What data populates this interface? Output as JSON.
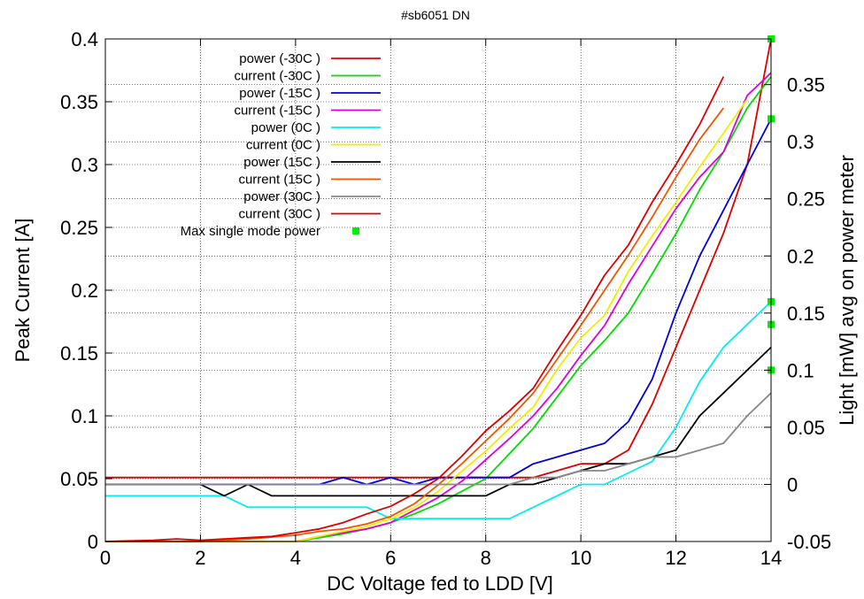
{
  "chart_data": {
    "type": "line",
    "title": "#sb6051 DN",
    "xlabel": "DC Voltage fed to LDD [V]",
    "ylabel": "Peak Current [A]",
    "y2label": "Light [mW] avg on power meter",
    "xlim": [
      0,
      14
    ],
    "ylim": [
      0,
      0.4
    ],
    "y2lim": [
      -0.05,
      0.39
    ],
    "x_ticks": [
      "0",
      "2",
      "4",
      "6",
      "8",
      "10",
      "12",
      "14"
    ],
    "x_tick_values": [
      0,
      2,
      4,
      6,
      8,
      10,
      12,
      14
    ],
    "y_ticks": [
      "0",
      "0.05",
      "0.1",
      "0.15",
      "0.2",
      "0.25",
      "0.3",
      "0.35",
      "0.4"
    ],
    "y_tick_values": [
      0,
      0.05,
      0.1,
      0.15,
      0.2,
      0.25,
      0.3,
      0.35,
      0.4
    ],
    "y2_ticks": [
      "-0.05",
      "0",
      "0.05",
      "0.1",
      "0.15",
      "0.2",
      "0.25",
      "0.3",
      "0.35"
    ],
    "y2_tick_values": [
      -0.05,
      0,
      0.05,
      0.1,
      0.15,
      0.2,
      0.25,
      0.3,
      0.35
    ],
    "grid": true,
    "legend_position": "top-left",
    "series": [
      {
        "name": "power (-30C )",
        "axis": "y2",
        "color": "#dd0000",
        "x": [
          0,
          7,
          8,
          8.5,
          9,
          9.5,
          10,
          10.5,
          11,
          11.5,
          12,
          12.5,
          13,
          13.5,
          14
        ],
        "y": [
          0.006,
          0.006,
          0.006,
          0.006,
          0.006,
          0.012,
          0.018,
          0.018,
          0.03,
          0.07,
          0.12,
          0.17,
          0.22,
          0.28,
          0.39
        ]
      },
      {
        "name": "current (-30C )",
        "axis": "y",
        "color": "#00dd00",
        "x": [
          0,
          1,
          2,
          3,
          4,
          4.5,
          5,
          5.5,
          6,
          6.5,
          7,
          7.5,
          8,
          8.5,
          9,
          9.5,
          10,
          10.5,
          11,
          11.5,
          12,
          12.5,
          13,
          13.5,
          14
        ],
        "y": [
          0,
          0,
          0,
          0,
          0,
          0.003,
          0.006,
          0.01,
          0.015,
          0.022,
          0.03,
          0.04,
          0.05,
          0.07,
          0.09,
          0.115,
          0.14,
          0.16,
          0.182,
          0.213,
          0.245,
          0.28,
          0.31,
          0.345,
          0.37
        ]
      },
      {
        "name": "power (-15C )",
        "axis": "y2",
        "color": "#0000dd",
        "x": [
          0,
          4.5,
          5,
          5.5,
          6,
          6.5,
          7,
          7.5,
          8,
          8.5,
          9,
          9.5,
          10,
          10.5,
          11,
          11.5,
          12,
          12.5,
          13,
          13.5,
          14
        ],
        "y": [
          0,
          0,
          0.006,
          0,
          0.006,
          0,
          0.006,
          0.006,
          0.006,
          0.006,
          0.018,
          0.024,
          0.03,
          0.036,
          0.055,
          0.092,
          0.15,
          0.2,
          0.24,
          0.28,
          0.32
        ]
      },
      {
        "name": "current (-15C )",
        "axis": "y",
        "color": "#dd00dd",
        "x": [
          0,
          1,
          2,
          3,
          4,
          4.5,
          5,
          5.5,
          6,
          6.5,
          7,
          7.5,
          8,
          8.5,
          9,
          9.5,
          10,
          10.5,
          11,
          11.5,
          12,
          12.5,
          13,
          13.5,
          14
        ],
        "y": [
          0,
          0,
          0,
          0,
          0,
          0.004,
          0.007,
          0.01,
          0.015,
          0.025,
          0.035,
          0.048,
          0.065,
          0.082,
          0.1,
          0.122,
          0.148,
          0.172,
          0.205,
          0.235,
          0.265,
          0.29,
          0.31,
          0.355,
          0.373
        ]
      },
      {
        "name": "power (0C )",
        "axis": "y2",
        "color": "#00eeee",
        "x": [
          0,
          2.5,
          3,
          5.5,
          6,
          8.5,
          9,
          10,
          10.5,
          11,
          11.5,
          12,
          12.5,
          13,
          13.5,
          14
        ],
        "y": [
          -0.01,
          -0.01,
          -0.02,
          -0.02,
          -0.03,
          -0.03,
          -0.02,
          0,
          0,
          0.01,
          0.02,
          0.05,
          0.09,
          0.12,
          0.14,
          0.16
        ]
      },
      {
        "name": "current (0C )",
        "axis": "y",
        "color": "#eeee00",
        "x": [
          0,
          1,
          2,
          3,
          4,
          4.5,
          5,
          5.5,
          6,
          6.5,
          7,
          7.5,
          8,
          8.5,
          9,
          9.5,
          10,
          10.5,
          11,
          11.5,
          12,
          12.5,
          13,
          13.5
        ],
        "y": [
          0,
          0,
          0,
          0,
          0,
          0.004,
          0.008,
          0.012,
          0.018,
          0.027,
          0.04,
          0.056,
          0.072,
          0.09,
          0.107,
          0.137,
          0.162,
          0.18,
          0.215,
          0.243,
          0.27,
          0.298,
          0.325,
          0.352
        ]
      },
      {
        "name": "power (15C )",
        "axis": "y2",
        "color": "#000000",
        "x": [
          0,
          2,
          2.5,
          3,
          3.5,
          8,
          8.5,
          9,
          9.5,
          10,
          10.5,
          11,
          11.5,
          12,
          12.5,
          13,
          13.5,
          14
        ],
        "y": [
          0,
          0,
          -0.01,
          0,
          -0.01,
          -0.01,
          0,
          0,
          0.006,
          0.012,
          0.018,
          0.018,
          0.024,
          0.03,
          0.06,
          0.08,
          0.1,
          0.12
        ]
      },
      {
        "name": "current (15C )",
        "axis": "y",
        "color": "#ee5500",
        "x": [
          0,
          1,
          2,
          3,
          4,
          4.5,
          5,
          5.5,
          6,
          6.5,
          7,
          7.5,
          8,
          8.5,
          9,
          9.5,
          10,
          10.5,
          11,
          11.5,
          12,
          12.5,
          13
        ],
        "y": [
          0,
          0,
          0,
          0.002,
          0.005,
          0.008,
          0.01,
          0.014,
          0.02,
          0.03,
          0.045,
          0.062,
          0.08,
          0.098,
          0.118,
          0.145,
          0.172,
          0.2,
          0.228,
          0.258,
          0.29,
          0.32,
          0.345
        ]
      },
      {
        "name": "power (30C )",
        "axis": "y2",
        "color": "#888888",
        "x": [
          0,
          8.5,
          9,
          9.5,
          10,
          10.5,
          11,
          11.5,
          12,
          12.5,
          13,
          13.5,
          14
        ],
        "y": [
          0,
          0,
          0.006,
          0.006,
          0.012,
          0.012,
          0.018,
          0.024,
          0.024,
          0.03,
          0.036,
          0.06,
          0.08
        ]
      },
      {
        "name": "current (30C )",
        "axis": "y",
        "color": "#dd0000",
        "x": [
          0,
          1,
          1.5,
          2,
          3,
          3.5,
          4,
          4.5,
          5,
          5.5,
          6,
          6.5,
          7,
          7.5,
          8,
          8.5,
          9,
          9.5,
          10,
          10.5,
          11,
          11.5,
          12,
          12.5,
          13
        ],
        "y": [
          0,
          0.001,
          0.002,
          0.001,
          0.003,
          0.004,
          0.007,
          0.01,
          0.015,
          0.022,
          0.028,
          0.038,
          0.05,
          0.068,
          0.088,
          0.104,
          0.122,
          0.152,
          0.18,
          0.212,
          0.236,
          0.27,
          0.3,
          0.332,
          0.37
        ]
      }
    ],
    "markers": {
      "name": "Max single mode power",
      "axis": "y2",
      "color": "#00ee00",
      "x": [
        14,
        14,
        14,
        14,
        14
      ],
      "y": [
        0.39,
        0.32,
        0.16,
        0.14,
        0.1
      ]
    }
  }
}
